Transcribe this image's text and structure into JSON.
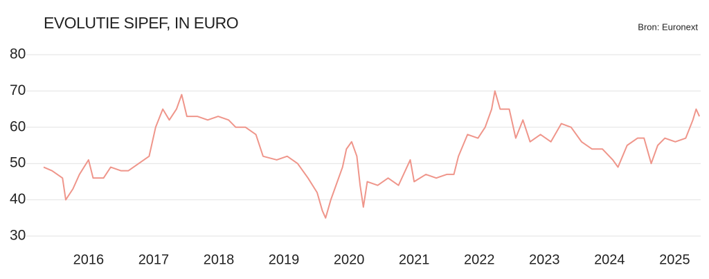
{
  "chart_data": {
    "type": "line",
    "title": "EVOLUTIE SIPEF, IN EURO",
    "source": "Bron: Euronext",
    "x": [
      2015.31,
      2015.44,
      2015.6,
      2015.65,
      2015.76,
      2015.86,
      2016.0,
      2016.07,
      2016.23,
      2016.34,
      2016.5,
      2016.61,
      2016.77,
      2016.93,
      2017.03,
      2017.14,
      2017.24,
      2017.35,
      2017.43,
      2017.51,
      2017.67,
      2017.83,
      2017.99,
      2018.15,
      2018.26,
      2018.41,
      2018.57,
      2018.68,
      2018.89,
      2019.05,
      2019.21,
      2019.37,
      2019.51,
      2019.59,
      2019.64,
      2019.72,
      2019.8,
      2019.9,
      2019.96,
      2020.04,
      2020.12,
      2020.17,
      2020.22,
      2020.28,
      2020.44,
      2020.6,
      2020.76,
      2020.94,
      2021.0,
      2021.18,
      2021.34,
      2021.5,
      2021.61,
      2021.68,
      2021.82,
      2021.98,
      2022.09,
      2022.19,
      2022.24,
      2022.32,
      2022.46,
      2022.56,
      2022.67,
      2022.78,
      2022.94,
      2023.1,
      2023.26,
      2023.41,
      2023.57,
      2023.73,
      2023.89,
      2024.05,
      2024.13,
      2024.27,
      2024.43,
      2024.53,
      2024.64,
      2024.74,
      2024.85,
      2025.01,
      2025.17,
      2025.28,
      2025.33,
      2025.38
    ],
    "series": [
      {
        "name": "SIPEF",
        "color": "#ef958a",
        "values": [
          49,
          48,
          46,
          40,
          43,
          47,
          51,
          46,
          46,
          49,
          48,
          48,
          50,
          52,
          60,
          65,
          62,
          65,
          69,
          63,
          63,
          62,
          63,
          62,
          60,
          60,
          58,
          52,
          51,
          52,
          50,
          46,
          42,
          37,
          35,
          40,
          44,
          49,
          54,
          56,
          52,
          44,
          38,
          45,
          44,
          46,
          44,
          51,
          45,
          47,
          46,
          47,
          47,
          52,
          58,
          57,
          60,
          65,
          70,
          65,
          65,
          57,
          62,
          56,
          58,
          56,
          61,
          60,
          56,
          54,
          54,
          51,
          49,
          55,
          57,
          57,
          50,
          55,
          57,
          56,
          57,
          62,
          65,
          63
        ]
      }
    ],
    "xlim": [
      2015.31,
      2025.4
    ],
    "xticks": [
      2016,
      2017,
      2018,
      2019,
      2020,
      2021,
      2022,
      2023,
      2024,
      2025
    ],
    "ylim": [
      30,
      80
    ],
    "yticks": [
      30,
      40,
      50,
      60,
      70,
      80
    ],
    "grid": true
  }
}
